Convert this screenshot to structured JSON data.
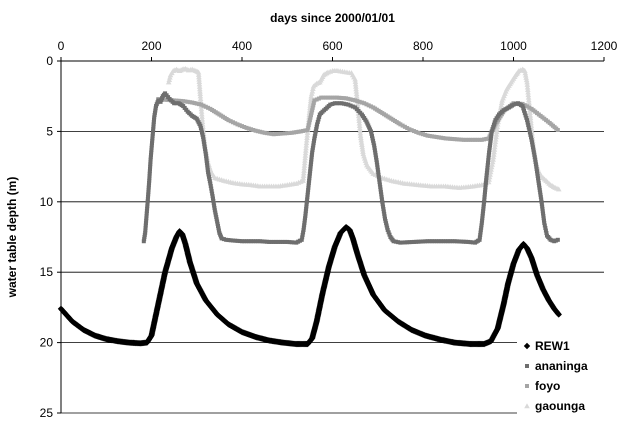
{
  "chart_data": {
    "type": "scatter",
    "title": "",
    "xlabel": "days since 2000/01/01",
    "ylabel": "water table depth (m)",
    "x_axis_position": "top",
    "y_axis_inverted": true,
    "xlim": [
      0,
      1200
    ],
    "ylim": [
      0,
      25
    ],
    "x_ticks": [
      0,
      200,
      400,
      600,
      800,
      1000,
      1200
    ],
    "y_ticks": [
      0,
      5,
      10,
      15,
      20,
      25
    ],
    "grid": "horizontal",
    "legend": "bottom-right",
    "series": [
      {
        "name": "REW1",
        "color": "#000000",
        "marker": "diamond",
        "points": [
          [
            0,
            17.6
          ],
          [
            25,
            18.5
          ],
          [
            50,
            19.1
          ],
          [
            75,
            19.5
          ],
          [
            100,
            19.75
          ],
          [
            125,
            19.9
          ],
          [
            150,
            20.0
          ],
          [
            175,
            20.05
          ],
          [
            190,
            20.0
          ],
          [
            200,
            19.5
          ],
          [
            210,
            18.0
          ],
          [
            220,
            16.5
          ],
          [
            230,
            15.0
          ],
          [
            245,
            13.3
          ],
          [
            255,
            12.5
          ],
          [
            262,
            12.1
          ],
          [
            268,
            12.3
          ],
          [
            275,
            13.0
          ],
          [
            285,
            14.3
          ],
          [
            300,
            15.8
          ],
          [
            320,
            17.0
          ],
          [
            345,
            18.0
          ],
          [
            370,
            18.7
          ],
          [
            400,
            19.25
          ],
          [
            430,
            19.6
          ],
          [
            460,
            19.85
          ],
          [
            490,
            20.0
          ],
          [
            520,
            20.1
          ],
          [
            545,
            20.1
          ],
          [
            555,
            19.7
          ],
          [
            565,
            18.5
          ],
          [
            578,
            16.5
          ],
          [
            592,
            14.6
          ],
          [
            605,
            13.2
          ],
          [
            618,
            12.2
          ],
          [
            630,
            11.8
          ],
          [
            638,
            12.0
          ],
          [
            645,
            12.6
          ],
          [
            655,
            13.7
          ],
          [
            670,
            15.2
          ],
          [
            690,
            16.6
          ],
          [
            715,
            17.7
          ],
          [
            745,
            18.5
          ],
          [
            775,
            19.1
          ],
          [
            805,
            19.5
          ],
          [
            840,
            19.8
          ],
          [
            870,
            20.0
          ],
          [
            905,
            20.1
          ],
          [
            935,
            20.1
          ],
          [
            950,
            19.9
          ],
          [
            965,
            19.0
          ],
          [
            978,
            17.3
          ],
          [
            988,
            15.8
          ],
          [
            1000,
            14.4
          ],
          [
            1012,
            13.4
          ],
          [
            1022,
            13.0
          ],
          [
            1030,
            13.3
          ],
          [
            1040,
            14.0
          ],
          [
            1052,
            15.2
          ],
          [
            1065,
            16.2
          ],
          [
            1078,
            17.0
          ],
          [
            1090,
            17.6
          ],
          [
            1100,
            18.0
          ]
        ]
      },
      {
        "name": "ananinga",
        "color": "#6e6e6e",
        "marker": "square",
        "points": [
          [
            183,
            12.8
          ],
          [
            186,
            12.2
          ],
          [
            189,
            11.0
          ],
          [
            192,
            9.8
          ],
          [
            195,
            8.5
          ],
          [
            198,
            7.0
          ],
          [
            202,
            5.5
          ],
          [
            206,
            4.0
          ],
          [
            210,
            3.2
          ],
          [
            215,
            2.8
          ],
          [
            220,
            2.9
          ],
          [
            225,
            2.5
          ],
          [
            230,
            2.3
          ],
          [
            240,
            2.7
          ],
          [
            250,
            3.0
          ],
          [
            260,
            3.0
          ],
          [
            270,
            3.2
          ],
          [
            280,
            3.6
          ],
          [
            290,
            3.9
          ],
          [
            300,
            4.1
          ],
          [
            308,
            4.6
          ],
          [
            314,
            5.4
          ],
          [
            320,
            6.6
          ],
          [
            325,
            7.9
          ],
          [
            330,
            8.7
          ],
          [
            335,
            9.6
          ],
          [
            340,
            10.6
          ],
          [
            345,
            11.4
          ],
          [
            350,
            12.2
          ],
          [
            355,
            12.6
          ],
          [
            365,
            12.7
          ],
          [
            380,
            12.75
          ],
          [
            400,
            12.8
          ],
          [
            420,
            12.8
          ],
          [
            440,
            12.8
          ],
          [
            460,
            12.85
          ],
          [
            480,
            12.85
          ],
          [
            500,
            12.85
          ],
          [
            520,
            12.9
          ],
          [
            532,
            12.7
          ],
          [
            536,
            12.0
          ],
          [
            540,
            11.0
          ],
          [
            545,
            9.5
          ],
          [
            550,
            8.0
          ],
          [
            555,
            6.5
          ],
          [
            560,
            5.5
          ],
          [
            566,
            4.5
          ],
          [
            572,
            3.8
          ],
          [
            578,
            3.6
          ],
          [
            585,
            3.4
          ],
          [
            595,
            3.1
          ],
          [
            605,
            3.0
          ],
          [
            620,
            3.0
          ],
          [
            635,
            3.1
          ],
          [
            650,
            3.3
          ],
          [
            665,
            3.8
          ],
          [
            675,
            4.3
          ],
          [
            685,
            5.0
          ],
          [
            692,
            6.0
          ],
          [
            698,
            7.2
          ],
          [
            704,
            8.6
          ],
          [
            710,
            10.0
          ],
          [
            716,
            11.2
          ],
          [
            722,
            12.0
          ],
          [
            728,
            12.5
          ],
          [
            735,
            12.8
          ],
          [
            750,
            12.9
          ],
          [
            780,
            12.85
          ],
          [
            810,
            12.8
          ],
          [
            840,
            12.8
          ],
          [
            870,
            12.8
          ],
          [
            900,
            12.85
          ],
          [
            915,
            12.9
          ],
          [
            925,
            12.7
          ],
          [
            930,
            11.5
          ],
          [
            935,
            10.0
          ],
          [
            940,
            8.3
          ],
          [
            946,
            6.5
          ],
          [
            952,
            5.0
          ],
          [
            960,
            4.2
          ],
          [
            968,
            3.8
          ],
          [
            978,
            3.5
          ],
          [
            990,
            3.3
          ],
          [
            1000,
            3.1
          ],
          [
            1010,
            3.0
          ],
          [
            1020,
            3.2
          ],
          [
            1030,
            4.2
          ],
          [
            1040,
            5.6
          ],
          [
            1048,
            7.0
          ],
          [
            1055,
            8.5
          ],
          [
            1062,
            10.0
          ],
          [
            1068,
            11.5
          ],
          [
            1074,
            12.4
          ],
          [
            1082,
            12.7
          ],
          [
            1090,
            12.8
          ],
          [
            1098,
            12.7
          ]
        ]
      },
      {
        "name": "foyo",
        "color": "#a5a5a5",
        "marker": "square",
        "points": [
          [
            215,
            2.7
          ],
          [
            230,
            2.75
          ],
          [
            250,
            2.8
          ],
          [
            270,
            2.85
          ],
          [
            290,
            2.95
          ],
          [
            310,
            3.1
          ],
          [
            330,
            3.4
          ],
          [
            350,
            3.8
          ],
          [
            370,
            4.2
          ],
          [
            390,
            4.5
          ],
          [
            410,
            4.75
          ],
          [
            430,
            4.95
          ],
          [
            450,
            5.1
          ],
          [
            470,
            5.2
          ],
          [
            490,
            5.15
          ],
          [
            510,
            5.1
          ],
          [
            530,
            5.0
          ],
          [
            545,
            4.9
          ],
          [
            560,
            2.8
          ],
          [
            575,
            2.6
          ],
          [
            590,
            2.6
          ],
          [
            610,
            2.6
          ],
          [
            630,
            2.65
          ],
          [
            650,
            2.8
          ],
          [
            670,
            3.0
          ],
          [
            690,
            3.3
          ],
          [
            710,
            3.7
          ],
          [
            730,
            4.1
          ],
          [
            750,
            4.5
          ],
          [
            770,
            4.85
          ],
          [
            790,
            5.1
          ],
          [
            810,
            5.3
          ],
          [
            830,
            5.4
          ],
          [
            850,
            5.5
          ],
          [
            870,
            5.55
          ],
          [
            890,
            5.6
          ],
          [
            910,
            5.6
          ],
          [
            930,
            5.6
          ],
          [
            945,
            5.5
          ],
          [
            960,
            4.5
          ],
          [
            980,
            3.5
          ],
          [
            1000,
            3.0
          ],
          [
            1020,
            3.05
          ],
          [
            1040,
            3.4
          ],
          [
            1060,
            3.9
          ],
          [
            1080,
            4.4
          ],
          [
            1098,
            4.9
          ]
        ]
      },
      {
        "name": "gaounga",
        "color": "#d9d9d9",
        "marker": "triangle",
        "points": [
          [
            238,
            1.5
          ],
          [
            242,
            1.0
          ],
          [
            248,
            0.7
          ],
          [
            255,
            0.6
          ],
          [
            262,
            0.7
          ],
          [
            268,
            0.6
          ],
          [
            275,
            0.55
          ],
          [
            282,
            0.65
          ],
          [
            290,
            0.6
          ],
          [
            298,
            0.7
          ],
          [
            304,
            0.8
          ],
          [
            308,
            2.5
          ],
          [
            313,
            4.5
          ],
          [
            318,
            6.0
          ],
          [
            325,
            7.2
          ],
          [
            332,
            7.9
          ],
          [
            340,
            8.3
          ],
          [
            360,
            8.5
          ],
          [
            380,
            8.65
          ],
          [
            400,
            8.75
          ],
          [
            420,
            8.8
          ],
          [
            440,
            8.9
          ],
          [
            460,
            8.9
          ],
          [
            480,
            8.9
          ],
          [
            500,
            8.8
          ],
          [
            520,
            8.7
          ],
          [
            535,
            8.5
          ],
          [
            542,
            6.0
          ],
          [
            548,
            4.0
          ],
          [
            553,
            2.5
          ],
          [
            558,
            1.8
          ],
          [
            565,
            1.6
          ],
          [
            572,
            1.5
          ],
          [
            580,
            1.0
          ],
          [
            590,
            0.8
          ],
          [
            600,
            0.7
          ],
          [
            612,
            0.7
          ],
          [
            622,
            0.75
          ],
          [
            632,
            0.8
          ],
          [
            642,
            0.85
          ],
          [
            650,
            1.3
          ],
          [
            656,
            3.2
          ],
          [
            662,
            5.3
          ],
          [
            668,
            6.6
          ],
          [
            676,
            7.4
          ],
          [
            690,
            8.0
          ],
          [
            710,
            8.3
          ],
          [
            730,
            8.5
          ],
          [
            760,
            8.7
          ],
          [
            790,
            8.8
          ],
          [
            820,
            8.9
          ],
          [
            850,
            8.9
          ],
          [
            880,
            9.0
          ],
          [
            910,
            8.9
          ],
          [
            930,
            8.8
          ],
          [
            945,
            8.6
          ],
          [
            955,
            7.0
          ],
          [
            965,
            4.5
          ],
          [
            975,
            2.8
          ],
          [
            985,
            2.0
          ],
          [
            995,
            1.5
          ],
          [
            1005,
            1.0
          ],
          [
            1012,
            0.7
          ],
          [
            1020,
            0.6
          ],
          [
            1025,
            0.7
          ],
          [
            1030,
            1.5
          ],
          [
            1036,
            3.5
          ],
          [
            1042,
            5.5
          ],
          [
            1048,
            7.0
          ],
          [
            1055,
            7.8
          ],
          [
            1062,
            8.2
          ],
          [
            1072,
            8.5
          ],
          [
            1082,
            8.8
          ],
          [
            1092,
            9.0
          ],
          [
            1100,
            9.1
          ]
        ]
      }
    ]
  }
}
